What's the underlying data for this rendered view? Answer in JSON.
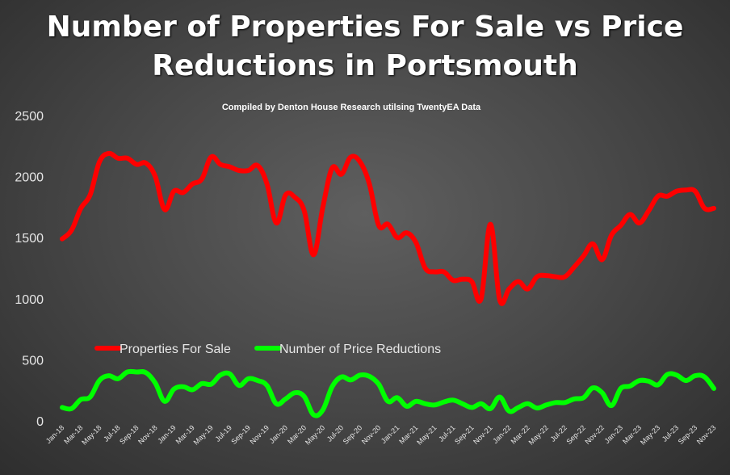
{
  "chart_data": {
    "type": "line",
    "title_lines": [
      "Number of Properties For Sale vs Price",
      "Reductions in Portsmouth"
    ],
    "subtitle": "Compiled by Denton House Research utilsing TwentyEA Data",
    "xlabel": "",
    "ylabel": "",
    "ylim": [
      0,
      2500
    ],
    "yticks": [
      "0",
      "500",
      "1000",
      "1500",
      "2000",
      "2500"
    ],
    "grid": false,
    "legend_position": "middle-left",
    "x": [
      "Jan-18",
      "Feb-18",
      "Mar-18",
      "Apr-18",
      "May-18",
      "Jun-18",
      "Jul-18",
      "Aug-18",
      "Sep-18",
      "Oct-18",
      "Nov-18",
      "Dec-18",
      "Jan-19",
      "Feb-19",
      "Mar-19",
      "Apr-19",
      "May-19",
      "Jun-19",
      "Jul-19",
      "Aug-19",
      "Sep-19",
      "Oct-19",
      "Nov-19",
      "Dec-19",
      "Jan-20",
      "Feb-20",
      "Mar-20",
      "Apr-20",
      "May-20",
      "Jun-20",
      "Jul-20",
      "Aug-20",
      "Sep-20",
      "Oct-20",
      "Nov-20",
      "Dec-20",
      "Jan-21",
      "Feb-21",
      "Mar-21",
      "Apr-21",
      "May-21",
      "Jun-21",
      "Jul-21",
      "Aug-21",
      "Sep-21",
      "Oct-21",
      "Nov-21",
      "Dec-21",
      "Jan-22",
      "Feb-22",
      "Mar-22",
      "Apr-22",
      "May-22",
      "Jun-22",
      "Jul-22",
      "Aug-22",
      "Sep-22",
      "Oct-22",
      "Nov-22",
      "Dec-22",
      "Jan-23",
      "Feb-23",
      "Mar-23",
      "Apr-23",
      "May-23",
      "Jun-23",
      "Jul-23",
      "Aug-23",
      "Sep-23",
      "Oct-23",
      "Nov-23"
    ],
    "x_tick_labels": [
      "Jan-18",
      "Mar-18",
      "May-18",
      "Jul-18",
      "Sep-18",
      "Nov-18",
      "Jan-19",
      "Mar-19",
      "May-19",
      "Jul-19",
      "Sep-19",
      "Nov-19",
      "Jan-20",
      "Mar-20",
      "May-20",
      "Jul-20",
      "Sep-20",
      "Nov-20",
      "Jan-21",
      "Mar-21",
      "May-21",
      "Jul-21",
      "Sep-21",
      "Nov-21",
      "Jan-22",
      "Mar-22",
      "May-22",
      "Jul-22",
      "Sep-22",
      "Nov-22",
      "Jan-23",
      "Mar-23",
      "May-23",
      "Jul-23",
      "Sep-23",
      "Nov-23"
    ],
    "series": [
      {
        "name": "Properties For Sale",
        "color": "#ff0000",
        "values": [
          1490,
          1560,
          1740,
          1850,
          2120,
          2190,
          2150,
          2150,
          2100,
          2110,
          2000,
          1730,
          1880,
          1870,
          1940,
          1980,
          2160,
          2100,
          2080,
          2050,
          2050,
          2090,
          1940,
          1620,
          1850,
          1830,
          1720,
          1360,
          1750,
          2070,
          2020,
          2160,
          2120,
          1940,
          1600,
          1610,
          1500,
          1540,
          1460,
          1250,
          1220,
          1220,
          1150,
          1160,
          1140,
          1000,
          1610,
          990,
          1080,
          1140,
          1080,
          1180,
          1190,
          1180,
          1180,
          1260,
          1350,
          1450,
          1320,
          1520,
          1600,
          1690,
          1620,
          1720,
          1840,
          1840,
          1880,
          1890,
          1880,
          1740,
          1740
        ]
      },
      {
        "name": "Number of Price Reductions",
        "color": "#00ff00",
        "values": [
          110,
          100,
          175,
          195,
          330,
          370,
          345,
          400,
          400,
          395,
          310,
          160,
          260,
          280,
          255,
          305,
          300,
          375,
          385,
          290,
          345,
          330,
          290,
          140,
          180,
          230,
          200,
          50,
          90,
          280,
          360,
          335,
          375,
          365,
          300,
          160,
          190,
          120,
          160,
          140,
          130,
          155,
          170,
          140,
          110,
          140,
          100,
          195,
          80,
          110,
          140,
          105,
          130,
          150,
          150,
          180,
          190,
          270,
          230,
          125,
          265,
          285,
          330,
          325,
          295,
          380,
          375,
          330,
          370,
          360,
          265
        ]
      }
    ]
  }
}
